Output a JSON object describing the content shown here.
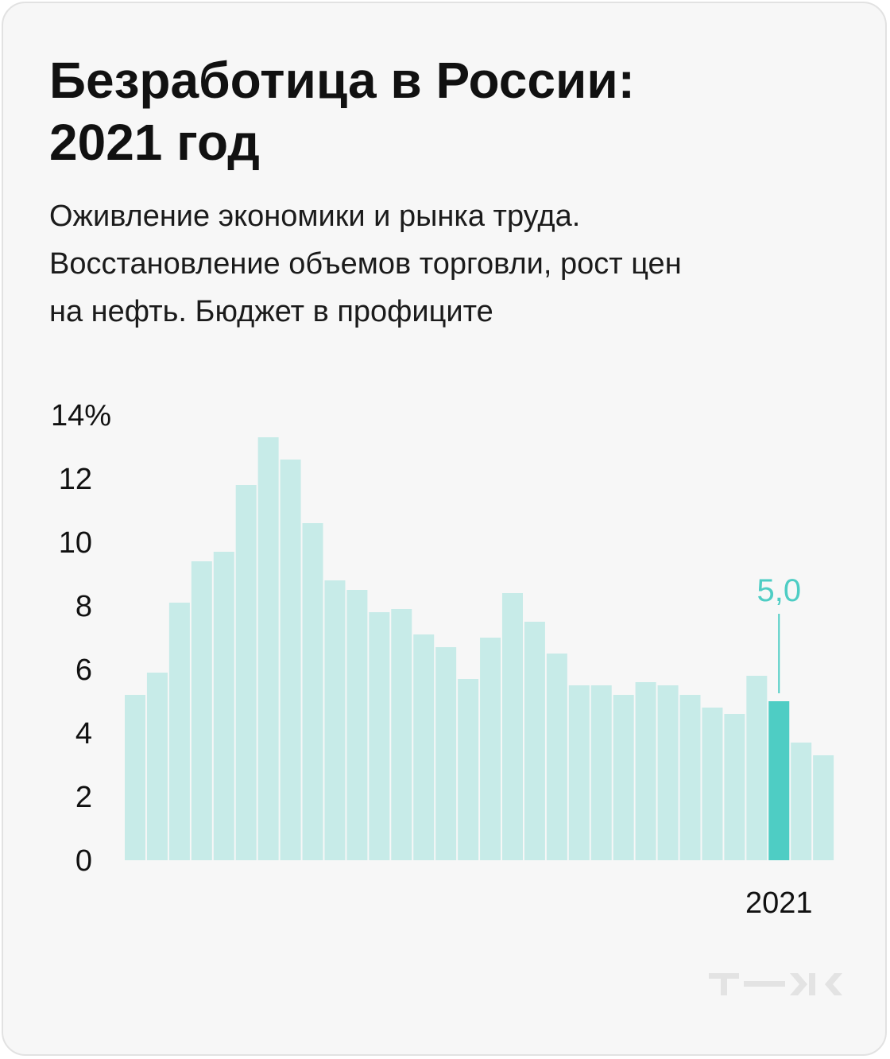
{
  "title_line1": "Безработица в России:",
  "title_line2": "2021 год",
  "subtitle_lines": [
    "Оживление экономики и рынка труда.",
    "Восстановление объемов торговли, рост цен",
    "на нефть. Бюджет в профиците"
  ],
  "colors": {
    "bar": "#c7ebe8",
    "highlight": "#4ecdc4",
    "text": "#111111",
    "logo": "#e3e3e3"
  },
  "logo_icon": "tzh-logo-icon",
  "chart_data": {
    "type": "bar",
    "values": [
      5.2,
      5.9,
      8.1,
      9.4,
      9.7,
      11.8,
      13.3,
      12.6,
      10.6,
      8.8,
      8.5,
      7.8,
      7.9,
      7.1,
      6.7,
      5.7,
      7.0,
      8.4,
      7.5,
      6.5,
      5.5,
      5.5,
      5.2,
      5.6,
      5.5,
      5.2,
      4.8,
      4.6,
      5.8,
      5.0,
      3.7,
      3.3
    ],
    "highlight_index": 29,
    "highlight_label": "5,0",
    "x_tick_labels": [
      {
        "index": 29,
        "label": "2021"
      }
    ],
    "y_ticks": [
      {
        "value": 0,
        "label": "0"
      },
      {
        "value": 2,
        "label": "2"
      },
      {
        "value": 4,
        "label": "4"
      },
      {
        "value": 6,
        "label": "6"
      },
      {
        "value": 8,
        "label": "8"
      },
      {
        "value": 10,
        "label": "10"
      },
      {
        "value": 12,
        "label": "12"
      },
      {
        "value": 14,
        "label": "14%"
      }
    ],
    "ylim": [
      0,
      14
    ],
    "grid": false,
    "legend": "none"
  }
}
